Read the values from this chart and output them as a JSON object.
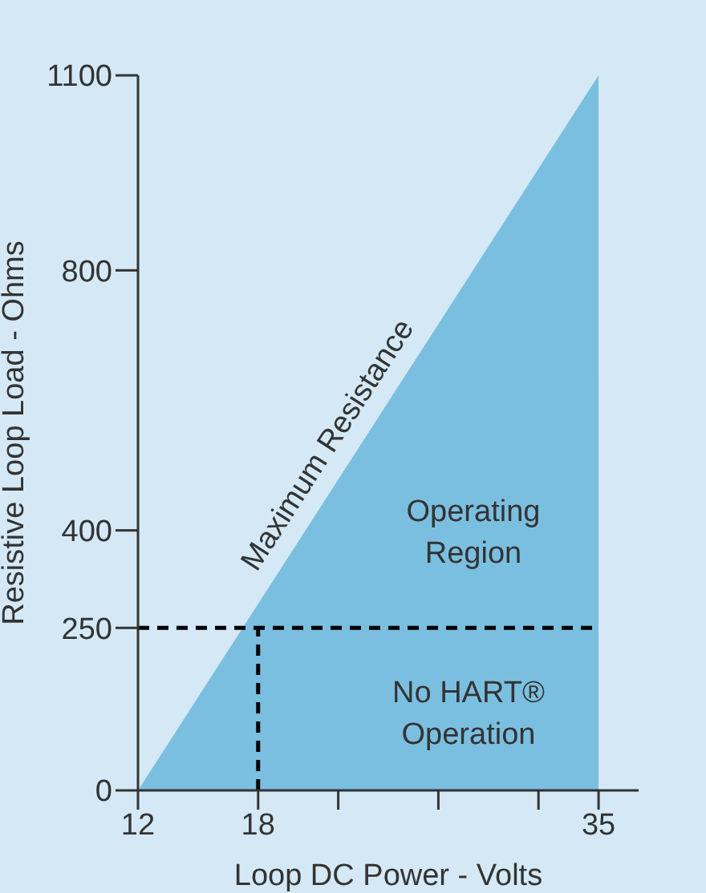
{
  "chart_data": {
    "type": "area",
    "xlabel": "Loop DC Power - Volts",
    "ylabel": "Resistive Loop Load - Ohms",
    "x": [
      12,
      35
    ],
    "values": [
      0,
      1100
    ],
    "color": "#7bbfe0",
    "xlim": [
      12,
      37
    ],
    "xticks": [
      12,
      18,
      {
        "value": 22,
        "label": null
      },
      {
        "value": 27,
        "label": null
      },
      {
        "value": 32,
        "label": null
      },
      35
    ],
    "ylim": [
      0,
      1100
    ],
    "yticks": [
      0,
      250,
      400,
      800,
      1100
    ],
    "ref_lines": [
      {
        "axis": "y",
        "value": 250,
        "color": "#000000",
        "line_style": "dashed"
      },
      {
        "axis": "x",
        "value": 18,
        "color": "#000000",
        "line_style": "dashed"
      }
    ],
    "annotations": [
      "Maximum Resistance",
      "Operating Region",
      "No HART® Operation"
    ],
    "grid": false,
    "legend": false
  }
}
